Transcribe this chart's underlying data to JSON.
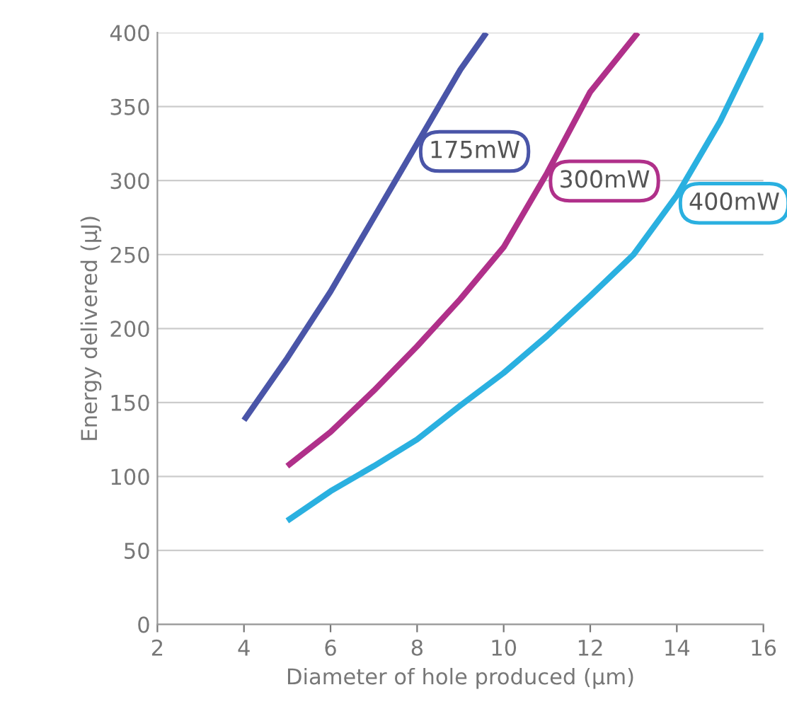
{
  "chart_data": {
    "type": "line",
    "xlabel": "Diameter of hole produced (µm)",
    "ylabel": "Energy delivered (µJ)",
    "xlim": [
      2,
      16
    ],
    "xticks": [
      2,
      4,
      6,
      8,
      10,
      12,
      14,
      16
    ],
    "ylim": [
      0,
      400
    ],
    "yticks": [
      0,
      50,
      100,
      150,
      200,
      250,
      300,
      350,
      400
    ],
    "grid": "y",
    "legend": false,
    "series": [
      {
        "name": "175mW",
        "color": "#4a55a8",
        "x": [
          4,
          5,
          6,
          7,
          8,
          9,
          9.6
        ],
        "values": [
          138,
          180,
          225,
          275,
          325,
          375,
          400
        ]
      },
      {
        "name": "300mW",
        "color": "#b0308a",
        "x": [
          5,
          6,
          7,
          8,
          9,
          10,
          11,
          12,
          13.1
        ],
        "values": [
          107,
          130,
          158,
          188,
          220,
          255,
          305,
          360,
          400
        ]
      },
      {
        "name": "400mW",
        "color": "#2ab0e0",
        "x": [
          5,
          6,
          7,
          8,
          9,
          10,
          11,
          12,
          13,
          14,
          15,
          16
        ],
        "values": [
          70,
          90,
          107,
          125,
          148,
          170,
          195,
          222,
          250,
          290,
          340,
          400
        ]
      }
    ]
  }
}
